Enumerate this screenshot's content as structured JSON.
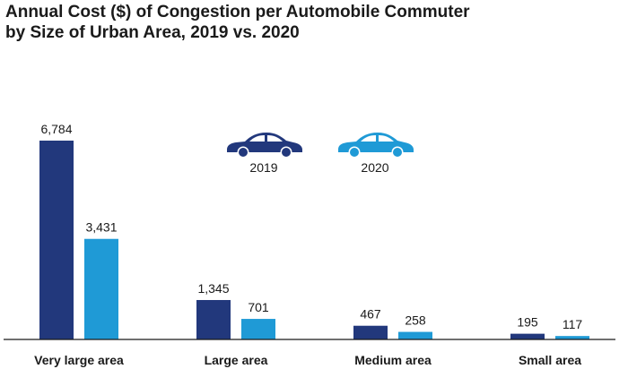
{
  "chart_data": {
    "type": "bar",
    "title": "Annual Cost ($) of Congestion per Automobile Commuter\nby Size of Urban Area, 2019 vs. 2020",
    "categories": [
      "Very large area",
      "Large area",
      "Medium area",
      "Small area"
    ],
    "series": [
      {
        "name": "2019",
        "values": [
          6784,
          1345,
          467,
          195
        ],
        "labels": [
          "6,784",
          "1,345",
          "467",
          "195"
        ],
        "color": "#22387c",
        "legend_icon": "car-icon"
      },
      {
        "name": "2020",
        "values": [
          3431,
          701,
          258,
          117
        ],
        "labels": [
          "3,431",
          "701",
          "258",
          "117"
        ],
        "color": "#1f9ad6",
        "legend_icon": "car-icon"
      }
    ],
    "ylim": [
      0,
      7000
    ],
    "grid": false,
    "legend_position": "top-center",
    "xlabel": "",
    "ylabel": ""
  }
}
